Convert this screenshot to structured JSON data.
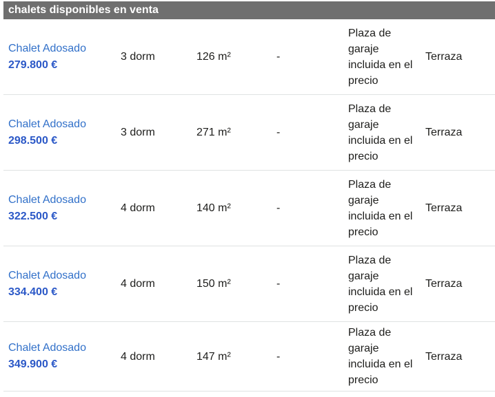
{
  "header": {
    "title": "chalets disponibles en venta"
  },
  "table": {
    "rows": [
      {
        "title": "Chalet Adosado",
        "price": "279.800 €",
        "bedrooms": "3 dorm",
        "area": "126 m²",
        "bathrooms": "-",
        "garage": "Plaza de garaje incluida en el precio",
        "features": "Terraza"
      },
      {
        "title": "Chalet Adosado",
        "price": "298.500 €",
        "bedrooms": "3 dorm",
        "area": "271 m²",
        "bathrooms": "-",
        "garage": "Plaza de garaje incluida en el precio",
        "features": "Terraza"
      },
      {
        "title": "Chalet Adosado",
        "price": "322.500 €",
        "bedrooms": "4 dorm",
        "area": "140 m²",
        "bathrooms": "-",
        "garage": "Plaza de garaje incluida en el precio",
        "features": "Terraza"
      },
      {
        "title": "Chalet Adosado",
        "price": "334.400 €",
        "bedrooms": "4 dorm",
        "area": "150 m²",
        "bathrooms": "-",
        "garage": "Plaza de garaje incluida en el precio",
        "features": "Terraza"
      },
      {
        "title": "Chalet Adosado",
        "price": "349.900 €",
        "bedrooms": "4 dorm",
        "area": "147 m²",
        "bathrooms": "-",
        "garage": "Plaza de garaje incluida en el precio",
        "features": "Terraza"
      }
    ]
  },
  "colors": {
    "header_bg": "#6f6f6f",
    "header_text": "#ffffff",
    "link_blue": "#3170c9",
    "price_blue": "#2b58c7",
    "row_border": "#dfe2e2",
    "body_text": "#1d1d1b",
    "background": "#ffffff"
  }
}
